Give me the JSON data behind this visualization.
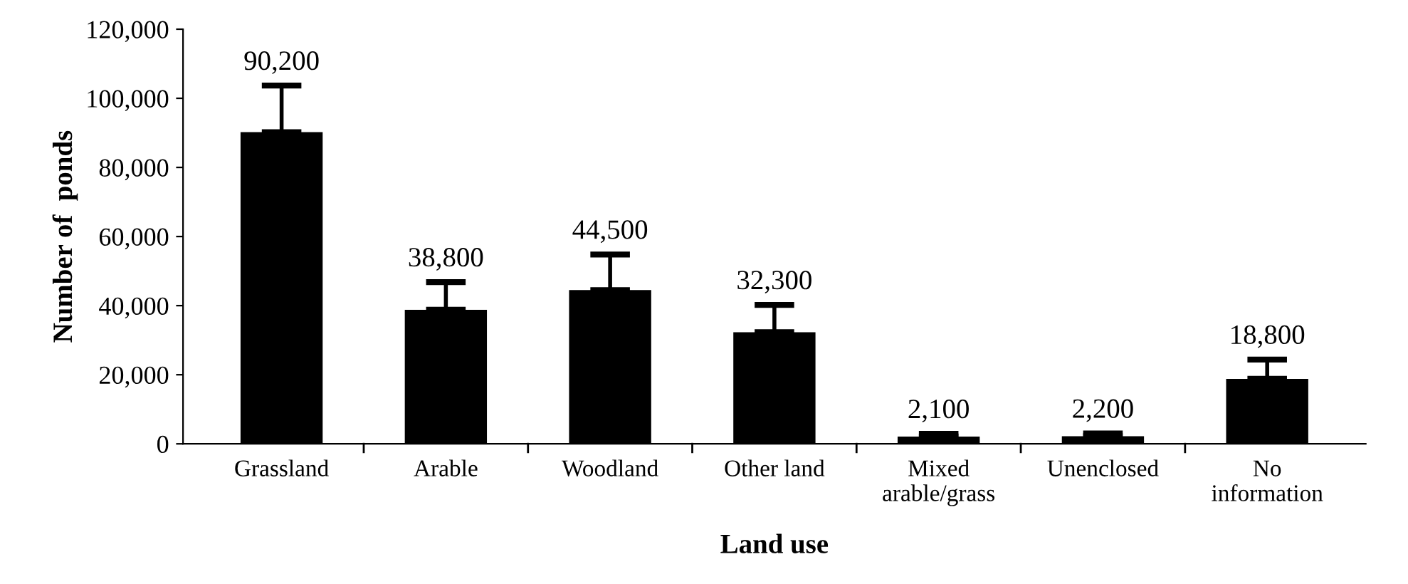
{
  "chart_data": {
    "type": "bar",
    "xlabel": "Land use",
    "ylabel": "Number of  ponds",
    "categories": [
      "Grassland",
      "Arable",
      "Woodland",
      "Other land",
      "Mixed\narable/grass",
      "Unenclosed",
      "No\ninformation"
    ],
    "values": [
      90200,
      38800,
      44500,
      32300,
      2100,
      2200,
      18800
    ],
    "errors": [
      13500,
      8000,
      10300,
      7900,
      800,
      800,
      5600
    ],
    "color": "#000000",
    "ylim": [
      0,
      120000
    ],
    "yticks": [
      {
        "value": 0,
        "label": "0"
      },
      {
        "value": 20000,
        "label": "20,000"
      },
      {
        "value": 40000,
        "label": "40,000"
      },
      {
        "value": 60000,
        "label": "60,000"
      },
      {
        "value": 80000,
        "label": "80,000"
      },
      {
        "value": 100000,
        "label": "100,000"
      },
      {
        "value": 120000,
        "label": "120,000"
      }
    ],
    "value_labels": [
      "90,200",
      "38,800",
      "44,500",
      "32,300",
      "2,100",
      "2,200",
      "18,800"
    ],
    "grid": false
  }
}
